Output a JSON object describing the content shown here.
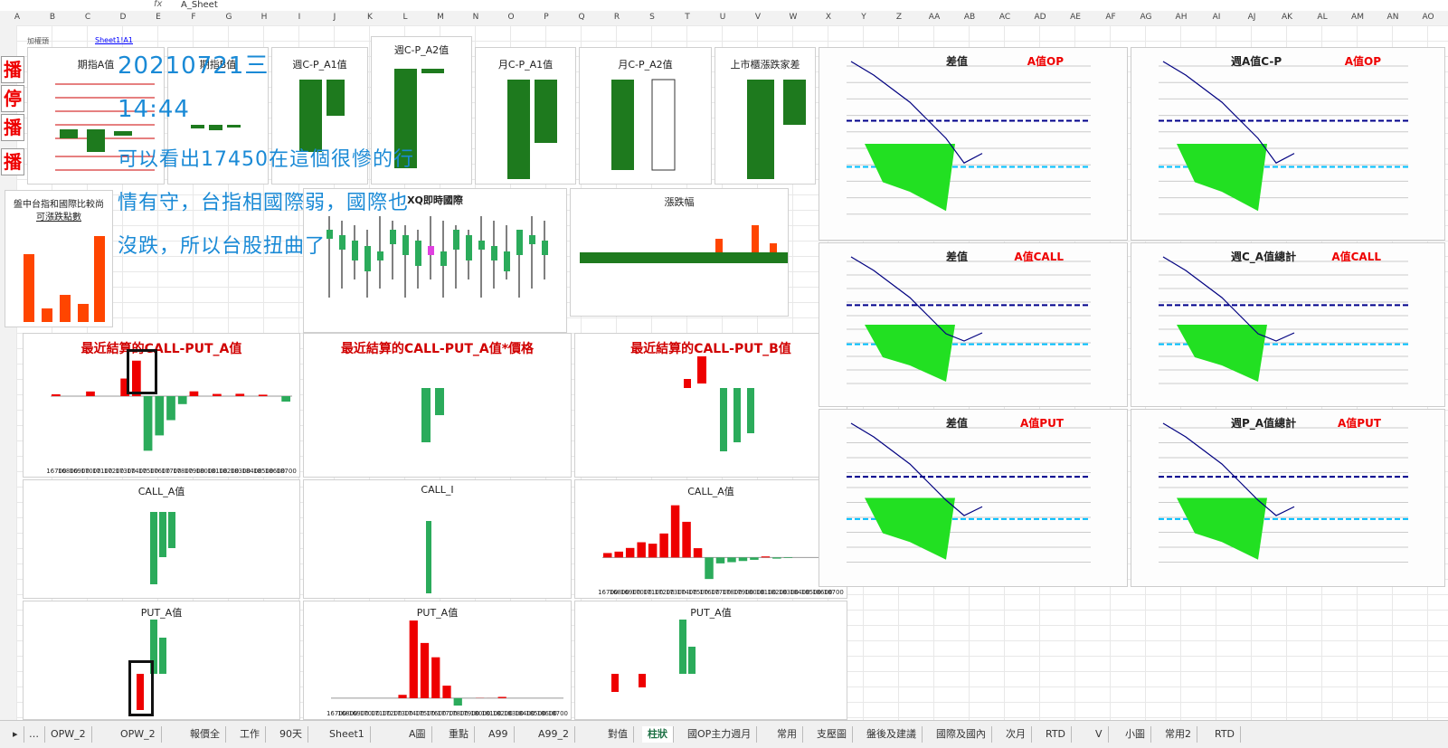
{
  "formula": {
    "name_box": "",
    "fx_label": "fx",
    "value": "A_Sheet"
  },
  "columns": [
    "A",
    "B",
    "C",
    "D",
    "E",
    "F",
    "G",
    "H",
    "I",
    "J",
    "K",
    "L",
    "M",
    "N",
    "O",
    "P",
    "Q",
    "R",
    "S",
    "T",
    "U",
    "V",
    "W",
    "X",
    "Y",
    "Z",
    "AA",
    "AB",
    "AC",
    "AD",
    "AE",
    "AF",
    "AG",
    "AH",
    "AI",
    "AJ",
    "AK",
    "AL",
    "AM",
    "AN",
    "AO"
  ],
  "side_buttons": [
    "播",
    "停",
    "播",
    "播"
  ],
  "sheet_link": "Sheet1!A1",
  "top_small": "加權頭",
  "note": {
    "line1": "20210721三",
    "line2": "14:44",
    "line3": "可以看出17450在這個很慘的行",
    "line4": "情有守，台指相國際弱，國際也",
    "line5": "沒跌，所以台股扭曲了"
  },
  "panels": {
    "qizhi": "期指A值",
    "qizhiB": "期指B值",
    "week_cp_a1": "週C-P_A1值",
    "week_cp_a2": "週C-P_A2值",
    "month_cp_a1": "月C-P_A1值",
    "month_cp_a2": "月C-P_A2值",
    "listed": "上市櫃漲跌家差",
    "compare": "盤中台指和國際比較尚",
    "compare_sub": "可漲跌點數",
    "xq": "XQ即時國際",
    "updown": "漲跌幅",
    "recent_cp_a": "最近結算的CALL-PUT_A值",
    "recent_cp_a_price": "最近結算的CALL-PUT_A值*價格",
    "recent_cp_b": "最近結算的CALL-PUT_B值",
    "call_a": "CALL_A值",
    "call_i": "CALL_I",
    "call_a2": "CALL_A值",
    "put_a": "PUT_A值",
    "put_a2": "PUT_A值",
    "put_a3": "PUT_A值"
  },
  "right_panels": [
    {
      "title": "差值",
      "tag": "A值OP"
    },
    {
      "title": "週A值C-P",
      "tag": "A值OP"
    },
    {
      "title": "差值",
      "tag": "A值CALL"
    },
    {
      "title": "週C_A值總計",
      "tag": "A值CALL"
    },
    {
      "title": "差值",
      "tag": "A值PUT"
    },
    {
      "title": "週P_A值總計",
      "tag": "A值PUT"
    }
  ],
  "tabs": [
    "OPW_2",
    "OPW_2",
    "報價全",
    "工作",
    "90天",
    "Sheet1",
    "A圖",
    "重點",
    "A99",
    "A99_2",
    "對值",
    "柱狀",
    "國OP主力週月",
    "常用",
    "支壓圖",
    "盤後及建議",
    "國際及國內",
    "次月",
    "RTD",
    "V",
    "小圖",
    "常用2",
    "RTD"
  ],
  "active_tab": 11,
  "chart_data": [
    {
      "type": "bar",
      "title": "最近結算的CALL-PUT_A值",
      "categories": [
        "16700",
        "16800",
        "16900",
        "17000",
        "17100",
        "17200",
        "17300",
        "17400",
        "17500",
        "17600",
        "17700",
        "17800",
        "17900",
        "18000",
        "18100",
        "18200",
        "18300",
        "18400",
        "18500",
        "18600",
        "18700"
      ],
      "values": [
        351,
        0,
        0,
        864,
        0,
        0,
        3246,
        6541,
        -10057,
        -7231,
        -4420,
        -1465,
        888,
        0,
        409,
        0,
        436,
        0,
        270,
        0,
        -1000
      ],
      "ylim": [
        -12500,
        7500
      ]
    },
    {
      "type": "bar",
      "title": "CALL_A值",
      "categories": [
        "16700",
        "16800",
        "16900",
        "17000",
        "17100",
        "17200",
        "17300",
        "17400",
        "17500",
        "17600",
        "17700",
        "17800",
        "17900",
        "18000",
        "18100",
        "18200",
        "18300",
        "18400",
        "18500",
        "18600",
        "18700"
      ],
      "values": [
        746,
        989,
        1610,
        2573,
        2328,
        4056,
        8830,
        6033,
        1570,
        -3645,
        -1000,
        -800,
        -600,
        -400,
        174,
        -200,
        -100,
        0,
        0,
        0,
        0
      ],
      "ylim": [
        -5000,
        10000
      ]
    },
    {
      "type": "bar",
      "title": "PUT_A值",
      "categories": [
        "16700",
        "16800",
        "16900",
        "17000",
        "17100",
        "17200",
        "17300",
        "17400",
        "17500",
        "17600",
        "17700",
        "17800",
        "17900",
        "18000",
        "18100",
        "18200",
        "18300",
        "18400",
        "18500",
        "18600",
        "18700"
      ],
      "values": [
        0,
        0,
        0,
        0,
        0,
        0,
        165,
        3862,
        2745,
        2034,
        622,
        -370,
        0,
        10,
        4,
        63,
        0,
        0,
        0,
        0,
        0
      ],
      "ylim": [
        -500,
        4000
      ]
    }
  ]
}
